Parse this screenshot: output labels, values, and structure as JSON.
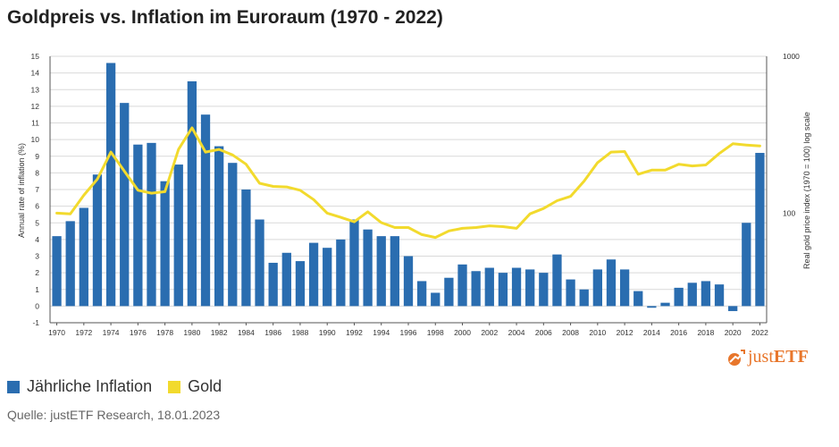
{
  "title": "Goldpreis vs. Inflation im Euroraum (1970 - 2022)",
  "legend": {
    "inflation_label": "Jährliche Inflation",
    "gold_label": "Gold"
  },
  "source": "Quelle: justETF Research, 18.01.2023",
  "logo": {
    "prefix": "just",
    "suffix": "ETF"
  },
  "colors": {
    "bars": "#2a6db0",
    "line": "#f2da2d",
    "grid": "#d9d9d9",
    "logo": "#e8762b"
  },
  "chart_data": {
    "type": "bar",
    "x": [
      1970,
      1971,
      1972,
      1973,
      1974,
      1975,
      1976,
      1977,
      1978,
      1979,
      1980,
      1981,
      1982,
      1983,
      1984,
      1985,
      1986,
      1987,
      1988,
      1989,
      1990,
      1991,
      1992,
      1993,
      1994,
      1995,
      1996,
      1997,
      1998,
      1999,
      2000,
      2001,
      2002,
      2003,
      2004,
      2005,
      2006,
      2007,
      2008,
      2009,
      2010,
      2011,
      2012,
      2013,
      2014,
      2015,
      2016,
      2017,
      2018,
      2019,
      2020,
      2021,
      2022
    ],
    "x_tick_labels": [
      "1970",
      "1972",
      "1974",
      "1976",
      "1978",
      "1980",
      "1982",
      "1984",
      "1986",
      "1988",
      "1990",
      "1992",
      "1994",
      "1996",
      "1998",
      "2000",
      "2002",
      "2004",
      "2006",
      "2008",
      "2010",
      "2012",
      "2014",
      "2016",
      "2018",
      "2020",
      "2022"
    ],
    "series": [
      {
        "name": "Jährliche Inflation",
        "axis": "left",
        "kind": "bar",
        "values": [
          4.2,
          5.1,
          5.9,
          7.9,
          14.6,
          12.2,
          9.7,
          9.8,
          7.5,
          8.5,
          13.5,
          11.5,
          9.6,
          8.6,
          7.0,
          5.2,
          2.6,
          3.2,
          2.7,
          3.8,
          3.5,
          4.0,
          5.2,
          4.6,
          4.2,
          4.2,
          3.0,
          1.5,
          0.8,
          1.7,
          2.5,
          2.1,
          2.3,
          2.0,
          2.3,
          2.2,
          2.0,
          3.1,
          1.6,
          1.0,
          2.2,
          2.8,
          2.2,
          0.9,
          -0.1,
          0.2,
          1.1,
          1.4,
          1.5,
          1.3,
          -0.3,
          5.0,
          9.2
        ]
      },
      {
        "name": "Gold",
        "axis": "right",
        "kind": "line",
        "values": [
          100,
          99,
          130,
          165,
          245,
          185,
          140,
          134,
          137,
          255,
          350,
          245,
          255,
          235,
          205,
          155,
          148,
          147,
          140,
          122,
          100,
          94,
          88,
          102,
          87,
          81,
          81,
          73,
          70,
          77,
          80,
          81,
          83,
          82,
          80,
          99,
          107,
          120,
          128,
          160,
          210,
          245,
          247,
          177,
          188,
          188,
          205,
          200,
          203,
          240,
          277,
          272,
          268
        ]
      }
    ],
    "y_left": {
      "label": "Annual rate of inflation (%)",
      "min": -1,
      "max": 15,
      "ticks": [
        -1,
        0,
        1,
        2,
        3,
        4,
        5,
        6,
        7,
        8,
        9,
        10,
        11,
        12,
        13,
        14,
        15
      ]
    },
    "y_right": {
      "label": "Real gold price index (1970 = 100) log scale",
      "scale": "log",
      "min": 20,
      "max": 1000,
      "ticks": [
        100,
        1000
      ],
      "tick_labels": [
        "100",
        "1000"
      ]
    },
    "grid": true
  }
}
